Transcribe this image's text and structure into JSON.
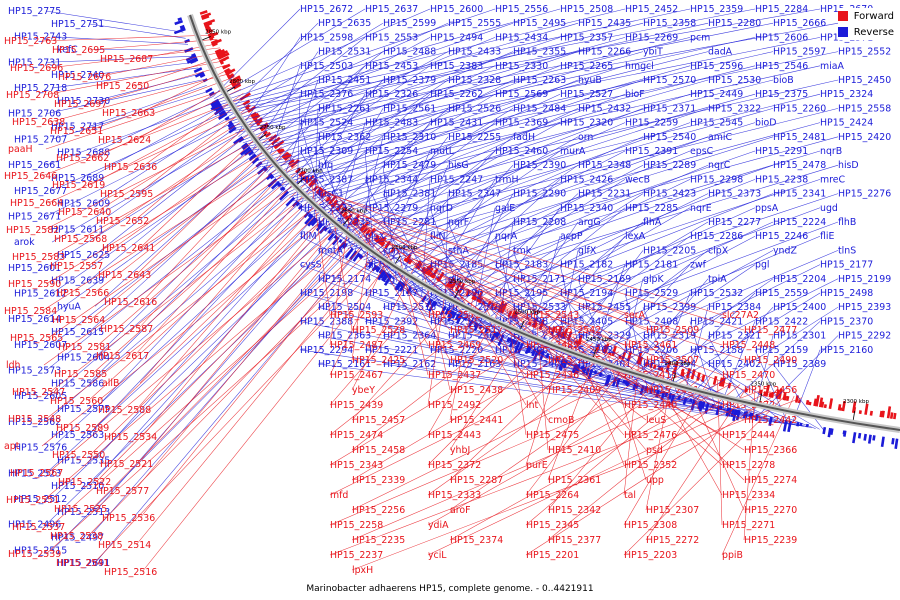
{
  "legend": {
    "forward_label": "Forward",
    "reverse_label": "Reverse",
    "forward_color": "#e8141b",
    "reverse_color": "#1b1bd8"
  },
  "caption": "Marinobacter adhaerens HP15, complete genome. - 0..4421911",
  "scale": {
    "tick_labels": [
      "2850 kbp",
      "2800 kbp",
      "2750 kbp",
      "2700 kbp",
      "2650 kbp",
      "2600 kbp",
      "2550 kbp",
      "2500 kbp",
      "2450 kbp",
      "2400 kbp",
      "2350 kbp",
      "2300 kbp"
    ]
  },
  "reverse_labels_outer": [
    "HP15_2775",
    "HP15_2751",
    "HP15_2743",
    "kefC",
    "HP15_2731",
    "HP15_2740",
    "HP15_2718",
    "HP15_2730",
    "HP15_2706",
    "HP15_2717",
    "HP15_2707",
    "HP15_2688",
    "HP15_2661",
    "HP15_2689",
    "HP15_2677",
    "HP15_2609",
    "HP15_2671",
    "HP15_2611",
    "arok",
    "HP15_2625",
    "HP15_2601",
    "HP15_2639",
    "HP15_2612",
    "hyuA",
    "HP15_2614",
    "HP15_2615",
    "HP15_2607",
    "HP15_2604",
    "HP15_2573",
    "HP15_2586",
    "HP15_2605",
    "HP15_2575",
    "HP15_2562",
    "HP15_2563",
    "HP15_2576",
    "HP15_2535",
    "HP15_2523",
    "HP15_2510",
    "HP15_2512",
    "HP15_2513",
    "HP15_2496",
    "HP15_2497",
    "HP15_2515",
    "HP15_2691"
  ],
  "forward_labels_outer": [
    "HP15_2763",
    "HP15_2695",
    "HP15_2687",
    "HP15_2696",
    "HP15_2676",
    "HP15_2650",
    "HP15_2708",
    "HP15_2697",
    "HP15_2663",
    "HP15_2638",
    "HP15_2651",
    "HP15_2624",
    "paaH",
    "HP15_2662",
    "HP15_2636",
    "HP15_2646",
    "HP15_2619",
    "HP15_2595",
    "HP15_2664",
    "HP15_2640",
    "HP15_2652",
    "HP15_2582",
    "HP15_2568",
    "HP15_2641",
    "HP15_2583",
    "HP15_2557",
    "HP15_2643",
    "HP15_2590",
    "HP15_2566",
    "HP15_2616",
    "HP15_2584",
    "HP15_2564",
    "HP15_2587",
    "HP15_2565",
    "HP15_2581",
    "HP15_2617",
    "ldh",
    "HP15_2585",
    "allB",
    "HP15_2547",
    "HP15_2560",
    "HP15_2588",
    "HP15_2548",
    "HP15_2589",
    "HP15_2534",
    "apt",
    "HP15_2550",
    "HP15_2521",
    "HP15_2567",
    "HP15_2522",
    "HP15_2577",
    "HP15_2551",
    "HP15_2525",
    "HP15_2536",
    "HP15_2537",
    "HP15_2538",
    "HP15_2514",
    "HP15_2539",
    "HP15_2541",
    "HP15_2516"
  ],
  "reverse_labels_inner": [
    "HP15_2672",
    "HP15_2637",
    "HP15_2600",
    "HP15_2556",
    "HP15_2508",
    "HP15_2452",
    "HP15_2359",
    "HP15_2284",
    "HP15_2670",
    "HP15_2635",
    "HP15_2599",
    "HP15_2555",
    "HP15_2495",
    "HP15_2435",
    "HP15_2358",
    "HP15_2280",
    "HP15_2666",
    "HP15_2631",
    "HP15_2598",
    "HP15_2553",
    "HP15_2494",
    "HP15_2434",
    "HP15_2357",
    "HP15_2269",
    "pcm",
    "HP15_2606",
    "HP15_2571",
    "HP15_2531",
    "HP15_2488",
    "HP15_2433",
    "HP15_2355",
    "HP15_2266",
    "ybiT",
    "dadA",
    "HP15_2597",
    "HP15_2552",
    "HP15_2503",
    "HP15_2453",
    "HP15_2383",
    "HP15_2330",
    "HP15_2265",
    "hmgcl",
    "HP15_2596",
    "HP15_2546",
    "miaA",
    "HP15_2451",
    "HP15_2379",
    "HP15_2328",
    "HP15_2263",
    "hyuB",
    "HP15_2570",
    "HP15_2530",
    "bioB",
    "HP15_2450",
    "HP15_2376",
    "HP15_2326",
    "HP15_2262",
    "HP15_2569",
    "HP15_2527",
    "bioF",
    "HP15_2449",
    "HP15_2375",
    "HP15_2324",
    "HP15_2261",
    "HP15_2561",
    "HP15_2526",
    "HP15_2484",
    "HP15_2432",
    "HP15_2371",
    "HP15_2322",
    "HP15_2260",
    "HP15_2558",
    "HP15_2524",
    "HP15_2483",
    "HP15_2431",
    "HP15_2369",
    "HP15_2320",
    "HP15_2259",
    "HP15_2545",
    "bioD",
    "HP15_2424",
    "HP15_2362",
    "HP15_2310",
    "HP15_2255",
    "fadH",
    "orn",
    "HP15_2540",
    "amiC",
    "HP15_2481",
    "HP15_2420",
    "HP15_2309",
    "HP15_2254",
    "mutL",
    "HP15_2460",
    "murA",
    "HP15_2391",
    "epsC",
    "HP15_2291",
    "nqrB",
    "hfq",
    "HP15_2479",
    "hisG",
    "HP15_2390",
    "HP15_2348",
    "HP15_2289",
    "nqrC",
    "HP15_2478",
    "hisD",
    "HP15_2387",
    "HP15_2344",
    "HP15_2247",
    "trmH",
    "HP15_2426",
    "wecB",
    "HP15_2298",
    "HP15_2238",
    "mreC",
    "hisC1",
    "HP15_2381",
    "HP15_2347",
    "HP15_2290",
    "HP15_2231",
    "HP15_2423",
    "HP15_2373",
    "HP15_2341",
    "HP15_2276",
    "HP15_2332",
    "HP15_2279",
    "nqrD",
    "galE",
    "HP15_2340",
    "HP15_2285",
    "nqrE",
    "ppsA",
    "ugd",
    "HP15_2335",
    "HP15_2281",
    "nqrF",
    "HP15_2208",
    "argG",
    "flhA",
    "HP15_2277",
    "HP15_2224",
    "flhB",
    "fliM",
    "plsX",
    "fliN",
    "nqrA",
    "acpP",
    "lexA",
    "HP15_2286",
    "HP15_2246",
    "fliE",
    "motA",
    "ccmE",
    "sthA",
    "tmk",
    "glfX",
    "HP15_2205",
    "clpX",
    "yndZ",
    "tlnS",
    "cysS",
    "glcB2",
    "HP15_2185",
    "HP15_2183",
    "HP15_2182",
    "HP15_2181",
    "zwf",
    "pgl",
    "HP15_2177",
    "HP15_2174",
    "tig",
    "glk",
    "HP15_2171",
    "HP15_2169",
    "glpK",
    "tpiA",
    "HP15_2204",
    "HP15_2199",
    "HP15_2198",
    "HP15_2197",
    "HP15_2196",
    "HP15_2195",
    "HP15_2194",
    "HP15_2529",
    "HP15_2532",
    "HP15_2559",
    "HP15_2498",
    "HP15_2504",
    "HP15_2518",
    "HP15_2519",
    "HP15_2533",
    "HP15_2455",
    "HP15_2399",
    "HP15_2384",
    "HP15_2400",
    "HP15_2393",
    "HP15_2388",
    "HP15_2392",
    "HP15_2397",
    "HP15_2398",
    "HP15_2405",
    "HP15_2408",
    "HP15_2421",
    "HP15_2422",
    "HP15_2370",
    "HP15_2363",
    "HP15_2364",
    "HP15_2360",
    "HP15_2331",
    "HP15_2329",
    "HP15_2319",
    "HP15_2321",
    "HP15_2301",
    "HP15_2292",
    "HP15_2294",
    "HP15_2221",
    "HP15_2220",
    "HP15_2200",
    "HP15_2202",
    "HP15_2206",
    "HP15_2158",
    "HP15_2159",
    "HP15_2160",
    "HP15_2161",
    "HP15_2162",
    "HP15_2163",
    "HP15_2403",
    "HP15_2401",
    "HP15_2394",
    "HP15_2402",
    "HP15_2389"
  ],
  "forward_labels_inner": [
    "HP15_2593",
    "HP15_2572",
    "HP15_2543",
    "serA",
    "slc27A2",
    "HP15_2528",
    "HP15_2517",
    "HP15_2542",
    "HP15_2509",
    "HP15_2477",
    "HP15_2487",
    "HP15_2469",
    "HP15_2489",
    "HP15_2461",
    "HP15_2448",
    "HP15_2425",
    "HP15_2520",
    "HP15_2505",
    "HP15_2507",
    "HP15_2490",
    "HP15_2467",
    "HP15_2437",
    "HP15_2436",
    "HP15_2415",
    "HP15_2470",
    "ybeY",
    "HP15_2438",
    "HP15_2409",
    "HP15_2491",
    "HP15_2456",
    "HP15_2439",
    "HP15_2492",
    "lnt",
    "HP15_2440",
    "HP15_2472",
    "HP15_2457",
    "HP15_2441",
    "cmoB",
    "leuS",
    "HP15_2442",
    "HP15_2474",
    "HP15_2443",
    "HP15_2475",
    "HP15_2476",
    "HP15_2444",
    "HP15_2458",
    "yhbJ",
    "HP15_2410",
    "psd",
    "HP15_2366",
    "HP15_2343",
    "HP15_2372",
    "purE",
    "HP15_2352",
    "HP15_2278",
    "HP15_2339",
    "HP15_2287",
    "HP15_2361",
    "upp",
    "HP15_2274",
    "mfd",
    "HP15_2333",
    "HP15_2264",
    "tal",
    "HP15_2334",
    "HP15_2256",
    "aroF",
    "HP15_2342",
    "HP15_2307",
    "HP15_2270",
    "HP15_2258",
    "ydiA",
    "HP15_2345",
    "HP15_2308",
    "HP15_2271",
    "HP15_2235",
    "HP15_2374",
    "HP15_2377",
    "HP15_2272",
    "HP15_2239",
    "HP15_2237",
    "yciL",
    "HP15_2201",
    "HP15_2203",
    "ppiB",
    "lpxH"
  ]
}
